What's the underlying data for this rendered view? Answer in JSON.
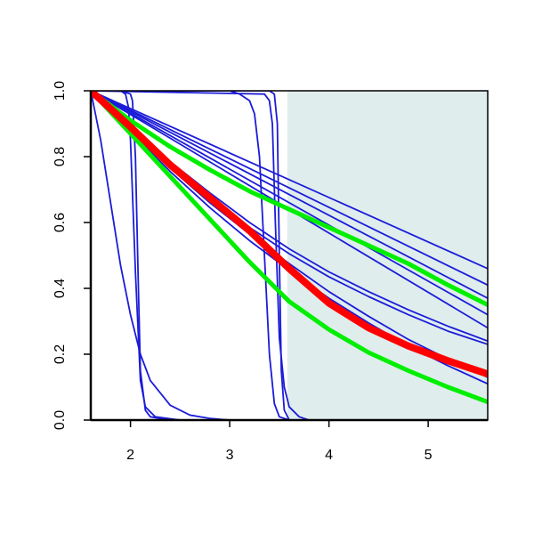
{
  "chart_data": {
    "type": "line",
    "xlim": [
      1.6,
      5.6
    ],
    "ylim": [
      0,
      1
    ],
    "xticks": [
      2,
      3,
      4,
      5
    ],
    "yticks": [
      {
        "value": 0,
        "label": "0.0"
      },
      {
        "value": 0.2,
        "label": "0.2"
      },
      {
        "value": 0.4,
        "label": "0.4"
      },
      {
        "value": 0.6,
        "label": "0.6"
      },
      {
        "value": 0.8,
        "label": "0.8"
      },
      {
        "value": 1,
        "label": "1.0"
      }
    ],
    "shaded_region": {
      "xlim": [
        3.58,
        5.6
      ],
      "color": "#dfeded"
    },
    "series": [
      {
        "color": "#1c1cd8",
        "width": 1.8,
        "x": [
          1.6,
          5.6
        ],
        "values": [
          1,
          0.46
        ]
      },
      {
        "color": "#1c1cd8",
        "width": 1.8,
        "x": [
          1.6,
          5.6
        ],
        "values": [
          1,
          0.41
        ]
      },
      {
        "color": "#1c1cd8",
        "width": 1.8,
        "x": [
          1.6,
          5.6
        ],
        "values": [
          1,
          0.37
        ]
      },
      {
        "color": "#1c1cd8",
        "width": 1.8,
        "x": [
          1.6,
          5.6
        ],
        "values": [
          1,
          0.32
        ]
      },
      {
        "color": "#1c1cd8",
        "width": 1.8,
        "x": [
          1.6,
          5.6
        ],
        "values": [
          1,
          0.28
        ]
      },
      {
        "color": "#1c1cd8",
        "width": 1.8,
        "x": [
          1.6,
          2.0,
          2.4,
          2.8,
          3.2,
          3.6,
          4.0,
          4.4,
          4.8,
          5.2,
          5.6
        ],
        "values": [
          1,
          0.89,
          0.785,
          0.69,
          0.6,
          0.52,
          0.45,
          0.39,
          0.335,
          0.285,
          0.24
        ]
      },
      {
        "color": "#1c1cd8",
        "width": 1.8,
        "x": [
          1.6,
          2.0,
          2.4,
          2.8,
          3.2,
          3.6,
          4.0,
          4.4,
          4.8,
          5.2,
          5.6
        ],
        "values": [
          1,
          0.885,
          0.775,
          0.675,
          0.585,
          0.505,
          0.435,
          0.375,
          0.32,
          0.27,
          0.23
        ]
      },
      {
        "color": "#1c1cd8",
        "width": 1.8,
        "x": [
          1.6,
          2.0,
          2.4,
          2.8,
          3.2,
          3.6,
          4.0,
          4.4,
          4.8,
          5.2,
          5.6
        ],
        "values": [
          1,
          0.88,
          0.765,
          0.66,
          0.565,
          0.475,
          0.39,
          0.315,
          0.245,
          0.185,
          0.13
        ]
      },
      {
        "color": "#1c1cd8",
        "width": 1.8,
        "x": [
          1.6,
          2.0,
          2.4,
          2.8,
          3.2,
          3.6,
          4.0,
          4.4,
          4.8,
          5.2,
          5.6
        ],
        "values": [
          1,
          0.875,
          0.755,
          0.645,
          0.545,
          0.455,
          0.37,
          0.295,
          0.225,
          0.165,
          0.11
        ]
      },
      {
        "color": "#1c1cd8",
        "width": 1.8,
        "x": [
          1.6,
          1.7,
          1.8,
          1.9,
          2.0,
          2.1,
          2.2,
          2.4,
          2.6,
          2.8,
          3.0,
          3.2,
          3.6
        ],
        "values": [
          1,
          0.85,
          0.66,
          0.47,
          0.32,
          0.2,
          0.12,
          0.045,
          0.015,
          0.005,
          0,
          0,
          0
        ]
      },
      {
        "color": "#1c1cd8",
        "width": 1.8,
        "x": [
          1.6,
          1.9,
          2.0,
          2.02,
          2.05,
          2.08,
          2.1,
          2.15,
          2.2,
          2.4,
          2.8,
          3.6
        ],
        "values": [
          1,
          1,
          0.99,
          0.97,
          0.8,
          0.4,
          0.15,
          0.03,
          0.01,
          0,
          0,
          0
        ]
      },
      {
        "color": "#1c1cd8",
        "width": 1.8,
        "x": [
          1.6,
          1.9,
          1.95,
          1.98,
          2.0,
          2.05,
          2.1,
          2.15,
          2.25,
          2.5,
          3.0,
          3.6
        ],
        "values": [
          1,
          1,
          0.99,
          0.95,
          0.85,
          0.45,
          0.12,
          0.04,
          0.01,
          0,
          0,
          0
        ]
      },
      {
        "color": "#1c1cd8",
        "width": 1.8,
        "x": [
          1.6,
          3.0,
          3.1,
          3.2,
          3.25,
          3.3,
          3.35,
          3.4,
          3.45,
          3.5,
          3.6,
          5.6
        ],
        "values": [
          1,
          1,
          0.99,
          0.97,
          0.93,
          0.8,
          0.5,
          0.2,
          0.05,
          0.01,
          0,
          0
        ]
      },
      {
        "color": "#1c1cd8",
        "width": 1.8,
        "x": [
          1.6,
          3.4,
          3.45,
          3.48,
          3.5,
          3.52,
          3.55,
          3.6,
          5.6
        ],
        "values": [
          1,
          1,
          0.99,
          0.9,
          0.5,
          0.15,
          0.03,
          0,
          0
        ]
      },
      {
        "color": "#1c1cd8",
        "width": 1.8,
        "x": [
          1.6,
          3.35,
          3.4,
          3.43,
          3.46,
          3.5,
          3.55,
          3.6,
          3.7,
          3.8,
          5.6
        ],
        "values": [
          1,
          0.99,
          0.97,
          0.9,
          0.6,
          0.25,
          0.1,
          0.04,
          0.01,
          0,
          0
        ]
      },
      {
        "color": "#00ee00",
        "width": 5,
        "x": [
          1.6,
          2.0,
          2.4,
          2.8,
          3.2,
          3.6,
          4.0,
          4.4,
          4.8,
          5.2,
          5.6
        ],
        "values": [
          1,
          0.87,
          0.74,
          0.61,
          0.48,
          0.36,
          0.275,
          0.205,
          0.15,
          0.1,
          0.055
        ]
      },
      {
        "color": "#00ee00",
        "width": 5,
        "x": [
          1.6,
          2.0,
          2.4,
          2.8,
          3.2,
          3.6,
          4.0,
          4.4,
          4.8,
          5.2,
          5.6
        ],
        "values": [
          1,
          0.91,
          0.83,
          0.76,
          0.695,
          0.64,
          0.585,
          0.53,
          0.475,
          0.41,
          0.35
        ]
      },
      {
        "color": "#ff0000",
        "width": 8,
        "x": [
          1.6,
          2.0,
          2.4,
          2.8,
          3.2,
          3.6,
          4.0,
          4.4,
          4.8,
          5.2,
          5.6
        ],
        "values": [
          1,
          0.89,
          0.775,
          0.675,
          0.575,
          0.46,
          0.355,
          0.28,
          0.225,
          0.18,
          0.14
        ]
      }
    ]
  }
}
